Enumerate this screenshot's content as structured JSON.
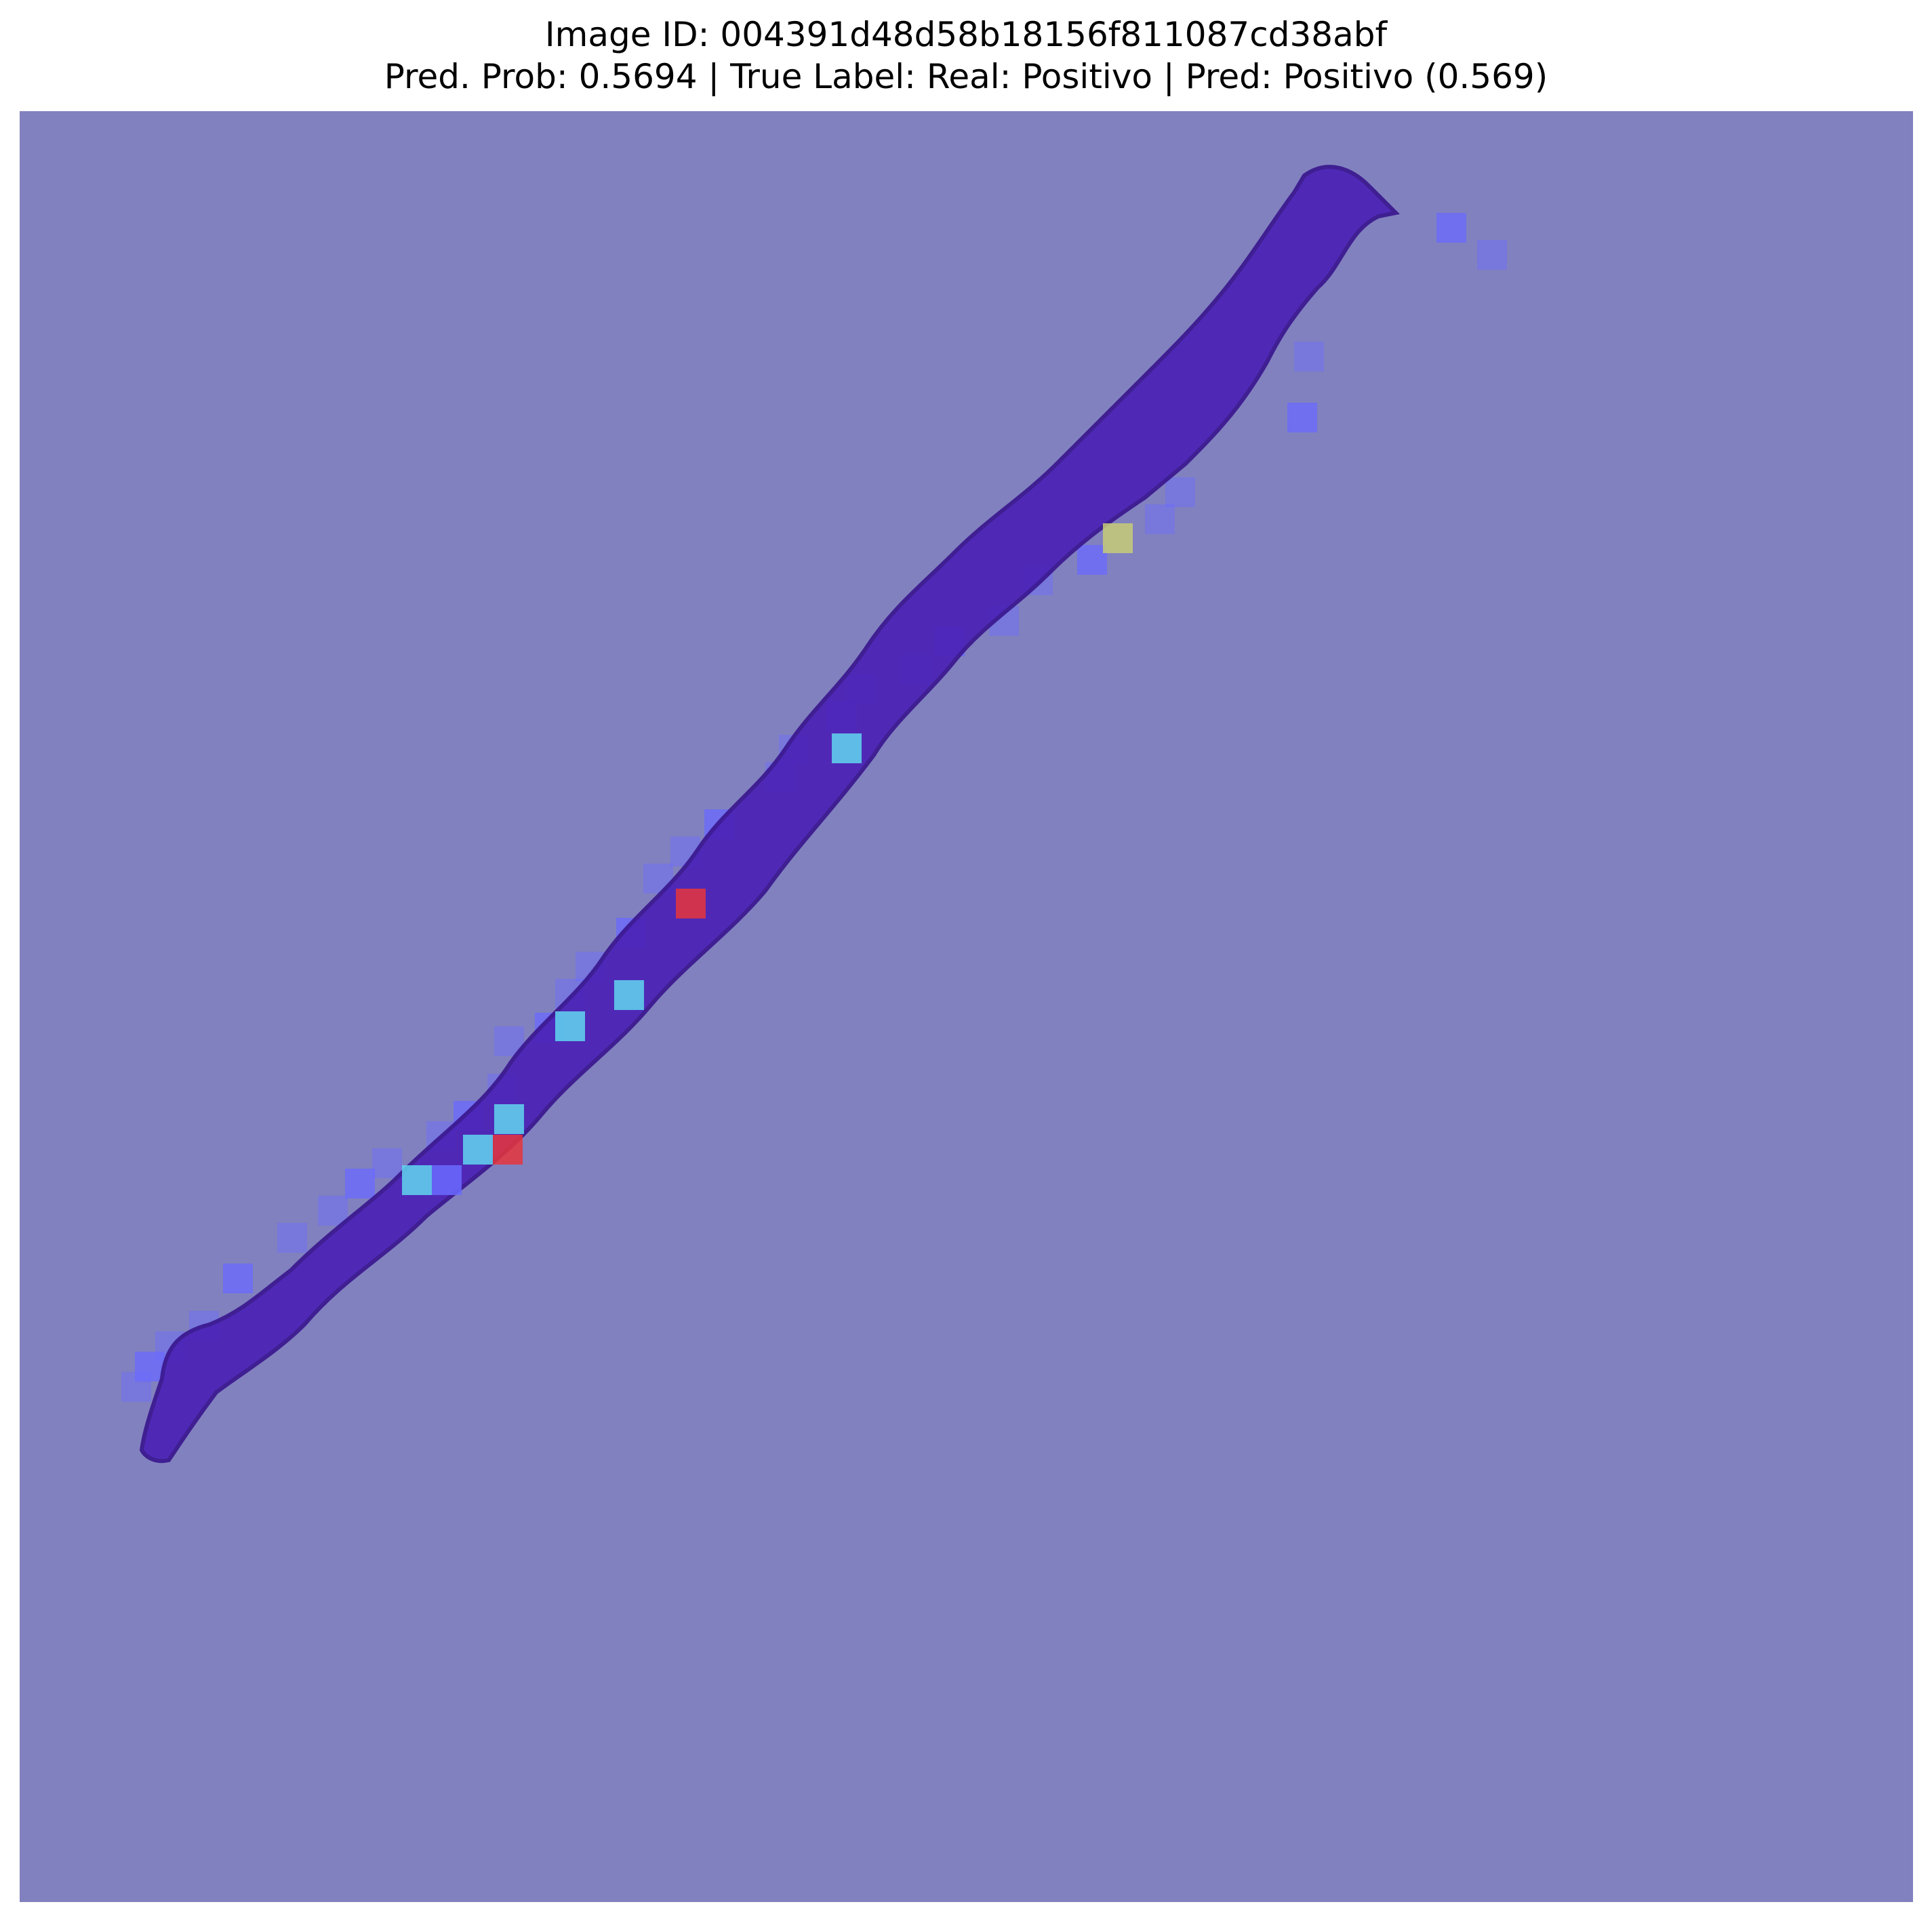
{
  "figure": {
    "title_line1": "Image ID: 004391d48d58b18156f811087cd38abf",
    "title_line2": "Pred. Prob: 0.5694 | True Label: Real: Positivo | Pred: Positivo (0.569)"
  },
  "colors": {
    "background_overlay": "#8181bf",
    "tissue": "#4b22b6",
    "tissue_dark": "#3a178f",
    "tile_low": "#6a6aff",
    "tile_cyan": "#60d6f0",
    "tile_yellow": "#c7cc75",
    "tile_red": "#e6353b"
  },
  "heatmap": {
    "description_colormap": "jet",
    "highlighted_tiles": [
      {
        "level": "red",
        "color_key": "tile_red"
      },
      {
        "level": "red",
        "color_key": "tile_red"
      },
      {
        "level": "yellow",
        "color_key": "tile_yellow"
      },
      {
        "level": "cyan",
        "color_key": "tile_cyan"
      }
    ]
  }
}
